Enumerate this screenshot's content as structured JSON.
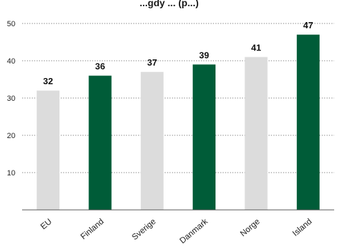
{
  "chart_data": {
    "type": "bar",
    "title": "...gdy ... (p...)",
    "categories": [
      "EU",
      "Finland",
      "Sverige",
      "Danmark",
      "Norge",
      "Island"
    ],
    "values": [
      32,
      36,
      37,
      39,
      41,
      47
    ],
    "highlight": [
      false,
      true,
      false,
      true,
      false,
      true
    ],
    "yticks": [
      10,
      20,
      30,
      40,
      50
    ],
    "ylim": [
      0,
      50
    ],
    "grid": true,
    "xlabel": "",
    "ylabel": "",
    "colors": {
      "highlight": "#005c38",
      "base": "#dcdcdc"
    }
  }
}
